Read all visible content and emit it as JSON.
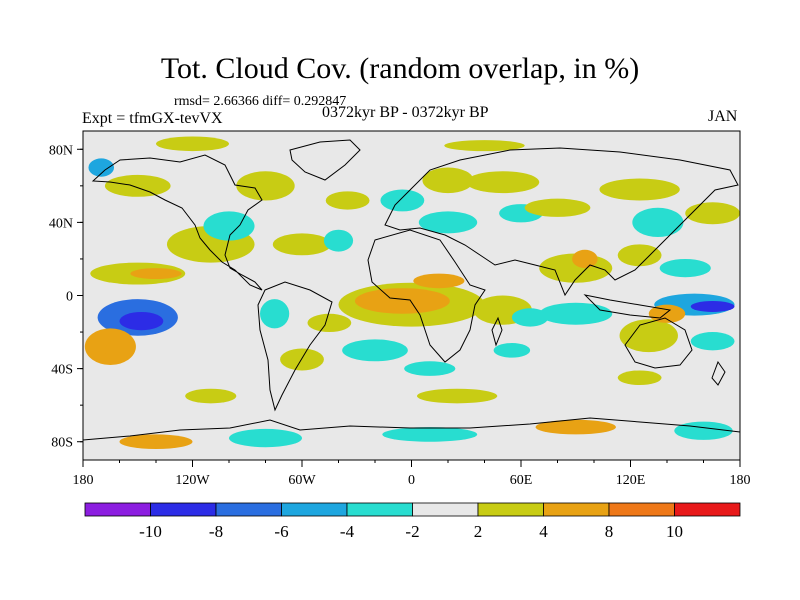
{
  "chart_data": {
    "type": "heatmap",
    "title": "Tot. Cloud Cov. (random overlap, in %)",
    "stats_line": "rmsd= 2.66366 diff= 0.292847",
    "rmsd": 2.66366,
    "diff": 0.292847,
    "experiment_label": "Expt = tfmGX-tevVX",
    "period": "0372kyr BP - 0372kyr BP",
    "month": "JAN",
    "x_ticks": [
      {
        "value": -180,
        "label": "180"
      },
      {
        "value": -120,
        "label": "120W"
      },
      {
        "value": -60,
        "label": "60W"
      },
      {
        "value": 0,
        "label": "0"
      },
      {
        "value": 60,
        "label": "60E"
      },
      {
        "value": 120,
        "label": "120E"
      },
      {
        "value": 180,
        "label": "180"
      }
    ],
    "y_ticks": [
      {
        "value": 80,
        "label": "80N"
      },
      {
        "value": 40,
        "label": "40N"
      },
      {
        "value": 0,
        "label": "0"
      },
      {
        "value": -40,
        "label": "40S"
      },
      {
        "value": -80,
        "label": "80S"
      }
    ],
    "xlim": [
      -180,
      180
    ],
    "ylim": [
      -90,
      90
    ],
    "colorbar": {
      "boundaries": [
        "-10",
        "-8",
        "-6",
        "-4",
        "-2",
        "2",
        "4",
        "8",
        "10"
      ],
      "colors": [
        "#8c1ee0",
        "#2c2ce6",
        "#2a6ee0",
        "#1ea6df",
        "#28ddd0",
        "#e8e8e8",
        "#c8cc14",
        "#e8a214",
        "#ee7818",
        "#e8191a"
      ]
    },
    "anomaly_regions": [
      {
        "lon": -150,
        "lat": -12,
        "rx": 22,
        "ry": 10,
        "value": -6
      },
      {
        "lon": -148,
        "lat": -14,
        "rx": 12,
        "ry": 5,
        "value": -9
      },
      {
        "lon": -165,
        "lat": -28,
        "rx": 14,
        "ry": 10,
        "value": 4
      },
      {
        "lon": -160,
        "lat": -30,
        "rx": 8,
        "ry": 6,
        "value": 6
      },
      {
        "lon": -150,
        "lat": 12,
        "rx": 26,
        "ry": 6,
        "value": 3
      },
      {
        "lon": -140,
        "lat": 12,
        "rx": 14,
        "ry": 3,
        "value": 5
      },
      {
        "lon": -110,
        "lat": 28,
        "rx": 24,
        "ry": 10,
        "value": 3
      },
      {
        "lon": -100,
        "lat": 38,
        "rx": 14,
        "ry": 8,
        "value": -3
      },
      {
        "lon": -150,
        "lat": 60,
        "rx": 18,
        "ry": 6,
        "value": 3
      },
      {
        "lon": -170,
        "lat": 70,
        "rx": 7,
        "ry": 5,
        "value": -5
      },
      {
        "lon": -80,
        "lat": 60,
        "rx": 16,
        "ry": 8,
        "value": 3
      },
      {
        "lon": -60,
        "lat": 28,
        "rx": 16,
        "ry": 6,
        "value": 3
      },
      {
        "lon": -40,
        "lat": 30,
        "rx": 8,
        "ry": 6,
        "value": -3
      },
      {
        "lon": -35,
        "lat": 52,
        "rx": 12,
        "ry": 5,
        "value": 3
      },
      {
        "lon": -5,
        "lat": 52,
        "rx": 12,
        "ry": 6,
        "value": -3
      },
      {
        "lon": 20,
        "lat": 40,
        "rx": 16,
        "ry": 6,
        "value": -3
      },
      {
        "lon": 20,
        "lat": 63,
        "rx": 14,
        "ry": 7,
        "value": 3
      },
      {
        "lon": 50,
        "lat": 62,
        "rx": 20,
        "ry": 6,
        "value": 3
      },
      {
        "lon": 60,
        "lat": 45,
        "rx": 12,
        "ry": 5,
        "value": -3
      },
      {
        "lon": 80,
        "lat": 48,
        "rx": 18,
        "ry": 5,
        "value": 3
      },
      {
        "lon": 125,
        "lat": 58,
        "rx": 22,
        "ry": 6,
        "value": 3
      },
      {
        "lon": 135,
        "lat": 40,
        "rx": 14,
        "ry": 8,
        "value": -3
      },
      {
        "lon": 165,
        "lat": 45,
        "rx": 15,
        "ry": 6,
        "value": 3
      },
      {
        "lon": 0,
        "lat": -5,
        "rx": 40,
        "ry": 12,
        "value": 3
      },
      {
        "lon": -5,
        "lat": -3,
        "rx": 26,
        "ry": 7,
        "value": 5
      },
      {
        "lon": 15,
        "lat": 8,
        "rx": 14,
        "ry": 4,
        "value": 5
      },
      {
        "lon": -45,
        "lat": -15,
        "rx": 12,
        "ry": 5,
        "value": 3
      },
      {
        "lon": -75,
        "lat": -10,
        "rx": 8,
        "ry": 8,
        "value": -3
      },
      {
        "lon": -60,
        "lat": -35,
        "rx": 12,
        "ry": 6,
        "value": 3
      },
      {
        "lon": -20,
        "lat": -30,
        "rx": 18,
        "ry": 6,
        "value": -3
      },
      {
        "lon": 10,
        "lat": -40,
        "rx": 14,
        "ry": 4,
        "value": -3
      },
      {
        "lon": 50,
        "lat": -8,
        "rx": 16,
        "ry": 8,
        "value": 3
      },
      {
        "lon": 65,
        "lat": -12,
        "rx": 10,
        "ry": 5,
        "value": -3
      },
      {
        "lon": 55,
        "lat": -30,
        "rx": 10,
        "ry": 4,
        "value": -3
      },
      {
        "lon": 90,
        "lat": 15,
        "rx": 20,
        "ry": 8,
        "value": 3
      },
      {
        "lon": 95,
        "lat": 20,
        "rx": 7,
        "ry": 5,
        "value": 5
      },
      {
        "lon": 90,
        "lat": -10,
        "rx": 20,
        "ry": 6,
        "value": -3
      },
      {
        "lon": 125,
        "lat": 22,
        "rx": 12,
        "ry": 6,
        "value": 3
      },
      {
        "lon": 150,
        "lat": 15,
        "rx": 14,
        "ry": 5,
        "value": -3
      },
      {
        "lon": 155,
        "lat": -5,
        "rx": 22,
        "ry": 6,
        "value": -5
      },
      {
        "lon": 165,
        "lat": -6,
        "rx": 12,
        "ry": 3,
        "value": -8
      },
      {
        "lon": 130,
        "lat": -22,
        "rx": 16,
        "ry": 9,
        "value": 3
      },
      {
        "lon": 140,
        "lat": -10,
        "rx": 10,
        "ry": 5,
        "value": 5
      },
      {
        "lon": 165,
        "lat": -25,
        "rx": 12,
        "ry": 5,
        "value": -3
      },
      {
        "lon": 125,
        "lat": -45,
        "rx": 12,
        "ry": 4,
        "value": 3
      },
      {
        "lon": 25,
        "lat": -55,
        "rx": 22,
        "ry": 4,
        "value": 3
      },
      {
        "lon": -110,
        "lat": -55,
        "rx": 14,
        "ry": 4,
        "value": 3
      },
      {
        "lon": -140,
        "lat": -80,
        "rx": 20,
        "ry": 4,
        "value": 4
      },
      {
        "lon": -80,
        "lat": -78,
        "rx": 20,
        "ry": 5,
        "value": -3
      },
      {
        "lon": 10,
        "lat": -76,
        "rx": 26,
        "ry": 4,
        "value": -3
      },
      {
        "lon": 90,
        "lat": -72,
        "rx": 22,
        "ry": 4,
        "value": 4
      },
      {
        "lon": 160,
        "lat": -74,
        "rx": 16,
        "ry": 5,
        "value": -3
      },
      {
        "lon": -120,
        "lat": 83,
        "rx": 20,
        "ry": 4,
        "value": 3
      },
      {
        "lon": 40,
        "lat": 82,
        "rx": 22,
        "ry": 3,
        "value": 3
      }
    ]
  }
}
